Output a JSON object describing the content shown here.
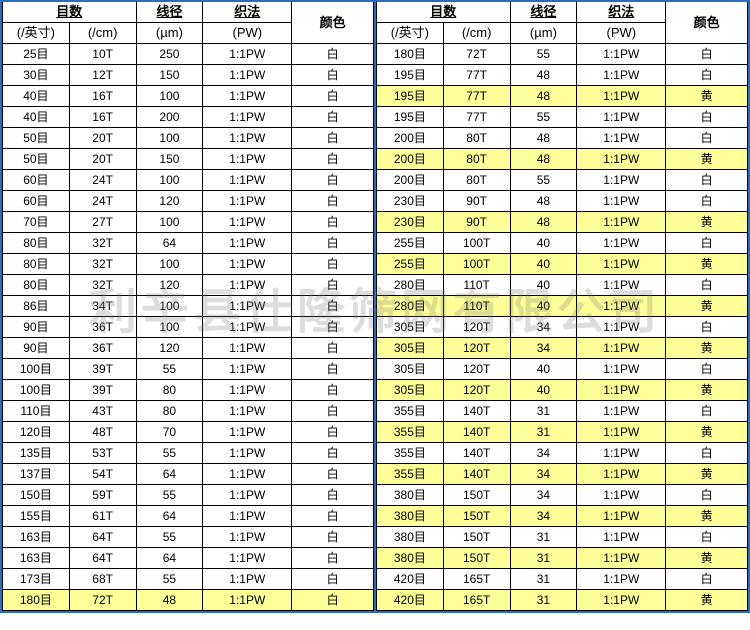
{
  "headers": {
    "mesh": "目数",
    "wire": "线径",
    "weave": "织法",
    "color": "颜色",
    "per_inch": "(/英寸)",
    "per_cm": "(/cm)",
    "um": "(µm)",
    "pw": "(PW)"
  },
  "left_rows": [
    {
      "m": "25目",
      "t": "10T",
      "d": "250",
      "w": "1:1PW",
      "c": "白",
      "hl": false
    },
    {
      "m": "30目",
      "t": "12T",
      "d": "150",
      "w": "1:1PW",
      "c": "白",
      "hl": false
    },
    {
      "m": "40目",
      "t": "16T",
      "d": "100",
      "w": "1:1PW",
      "c": "白",
      "hl": false
    },
    {
      "m": "40目",
      "t": "16T",
      "d": "200",
      "w": "1:1PW",
      "c": "白",
      "hl": false
    },
    {
      "m": "50目",
      "t": "20T",
      "d": "100",
      "w": "1:1PW",
      "c": "白",
      "hl": false
    },
    {
      "m": "50目",
      "t": "20T",
      "d": "150",
      "w": "1:1PW",
      "c": "白",
      "hl": false
    },
    {
      "m": "60目",
      "t": "24T",
      "d": "100",
      "w": "1:1PW",
      "c": "白",
      "hl": false
    },
    {
      "m": "60目",
      "t": "24T",
      "d": "120",
      "w": "1:1PW",
      "c": "白",
      "hl": false
    },
    {
      "m": "70目",
      "t": "27T",
      "d": "100",
      "w": "1:1PW",
      "c": "白",
      "hl": false
    },
    {
      "m": "80目",
      "t": "32T",
      "d": "64",
      "w": "1:1PW",
      "c": "白",
      "hl": false
    },
    {
      "m": "80目",
      "t": "32T",
      "d": "100",
      "w": "1:1PW",
      "c": "白",
      "hl": false
    },
    {
      "m": "80目",
      "t": "32T",
      "d": "120",
      "w": "1:1PW",
      "c": "白",
      "hl": false
    },
    {
      "m": "86目",
      "t": "34T",
      "d": "100",
      "w": "1:1PW",
      "c": "白",
      "hl": false
    },
    {
      "m": "90目",
      "t": "36T",
      "d": "100",
      "w": "1:1PW",
      "c": "白",
      "hl": false
    },
    {
      "m": "90目",
      "t": "36T",
      "d": "120",
      "w": "1:1PW",
      "c": "白",
      "hl": false
    },
    {
      "m": "100目",
      "t": "39T",
      "d": "55",
      "w": "1:1PW",
      "c": "白",
      "hl": false
    },
    {
      "m": "100目",
      "t": "39T",
      "d": "80",
      "w": "1:1PW",
      "c": "白",
      "hl": false
    },
    {
      "m": "110目",
      "t": "43T",
      "d": "80",
      "w": "1:1PW",
      "c": "白",
      "hl": false
    },
    {
      "m": "120目",
      "t": "48T",
      "d": "70",
      "w": "1:1PW",
      "c": "白",
      "hl": false
    },
    {
      "m": "135目",
      "t": "53T",
      "d": "55",
      "w": "1:1PW",
      "c": "白",
      "hl": false
    },
    {
      "m": "137目",
      "t": "54T",
      "d": "64",
      "w": "1:1PW",
      "c": "白",
      "hl": false
    },
    {
      "m": "150目",
      "t": "59T",
      "d": "55",
      "w": "1:1PW",
      "c": "白",
      "hl": false
    },
    {
      "m": "155目",
      "t": "61T",
      "d": "64",
      "w": "1:1PW",
      "c": "白",
      "hl": false
    },
    {
      "m": "163目",
      "t": "64T",
      "d": "55",
      "w": "1:1PW",
      "c": "白",
      "hl": false
    },
    {
      "m": "163目",
      "t": "64T",
      "d": "64",
      "w": "1:1PW",
      "c": "白",
      "hl": false
    },
    {
      "m": "173目",
      "t": "68T",
      "d": "55",
      "w": "1:1PW",
      "c": "白",
      "hl": false
    },
    {
      "m": "180目",
      "t": "72T",
      "d": "48",
      "w": "1:1PW",
      "c": "白",
      "hl": true
    }
  ],
  "right_rows": [
    {
      "m": "180目",
      "t": "72T",
      "d": "55",
      "w": "1:1PW",
      "c": "白",
      "hl": false
    },
    {
      "m": "195目",
      "t": "77T",
      "d": "48",
      "w": "1:1PW",
      "c": "白",
      "hl": false
    },
    {
      "m": "195目",
      "t": "77T",
      "d": "48",
      "w": "1:1PW",
      "c": "黄",
      "hl": true
    },
    {
      "m": "195目",
      "t": "77T",
      "d": "55",
      "w": "1:1PW",
      "c": "白",
      "hl": false
    },
    {
      "m": "200目",
      "t": "80T",
      "d": "48",
      "w": "1:1PW",
      "c": "白",
      "hl": false
    },
    {
      "m": "200目",
      "t": "80T",
      "d": "48",
      "w": "1:1PW",
      "c": "黄",
      "hl": true
    },
    {
      "m": "200目",
      "t": "80T",
      "d": "55",
      "w": "1:1PW",
      "c": "白",
      "hl": false
    },
    {
      "m": "230目",
      "t": "90T",
      "d": "48",
      "w": "1:1PW",
      "c": "白",
      "hl": false
    },
    {
      "m": "230目",
      "t": "90T",
      "d": "48",
      "w": "1:1PW",
      "c": "黄",
      "hl": true
    },
    {
      "m": "255目",
      "t": "100T",
      "d": "40",
      "w": "1:1PW",
      "c": "白",
      "hl": false
    },
    {
      "m": "255目",
      "t": "100T",
      "d": "40",
      "w": "1:1PW",
      "c": "黄",
      "hl": true
    },
    {
      "m": "280目",
      "t": "110T",
      "d": "40",
      "w": "1:1PW",
      "c": "白",
      "hl": false
    },
    {
      "m": "280目",
      "t": "110T",
      "d": "40",
      "w": "1:1PW",
      "c": "黄",
      "hl": true
    },
    {
      "m": "305目",
      "t": "120T",
      "d": "34",
      "w": "1:1PW",
      "c": "白",
      "hl": false
    },
    {
      "m": "305目",
      "t": "120T",
      "d": "34",
      "w": "1:1PW",
      "c": "黄",
      "hl": true
    },
    {
      "m": "305目",
      "t": "120T",
      "d": "40",
      "w": "1:1PW",
      "c": "白",
      "hl": false
    },
    {
      "m": "305目",
      "t": "120T",
      "d": "40",
      "w": "1:1PW",
      "c": "黄",
      "hl": true
    },
    {
      "m": "355目",
      "t": "140T",
      "d": "31",
      "w": "1:1PW",
      "c": "白",
      "hl": false
    },
    {
      "m": "355目",
      "t": "140T",
      "d": "31",
      "w": "1:1PW",
      "c": "黄",
      "hl": true
    },
    {
      "m": "355目",
      "t": "140T",
      "d": "34",
      "w": "1:1PW",
      "c": "白",
      "hl": false
    },
    {
      "m": "355目",
      "t": "140T",
      "d": "34",
      "w": "1:1PW",
      "c": "黄",
      "hl": true
    },
    {
      "m": "380目",
      "t": "150T",
      "d": "34",
      "w": "1:1PW",
      "c": "白",
      "hl": false
    },
    {
      "m": "380目",
      "t": "150T",
      "d": "34",
      "w": "1:1PW",
      "c": "黄",
      "hl": true
    },
    {
      "m": "380目",
      "t": "150T",
      "d": "31",
      "w": "1:1PW",
      "c": "白",
      "hl": false
    },
    {
      "m": "380目",
      "t": "150T",
      "d": "31",
      "w": "1:1PW",
      "c": "黄",
      "hl": true
    },
    {
      "m": "420目",
      "t": "165T",
      "d": "31",
      "w": "1:1PW",
      "c": "白",
      "hl": false
    },
    {
      "m": "420目",
      "t": "165T",
      "d": "31",
      "w": "1:1PW",
      "c": "黄",
      "hl": true
    }
  ],
  "watermark": "利辛县仕隆筛网有限公司",
  "highlight_color": "#ffff99",
  "border_color": "#2a6db8"
}
